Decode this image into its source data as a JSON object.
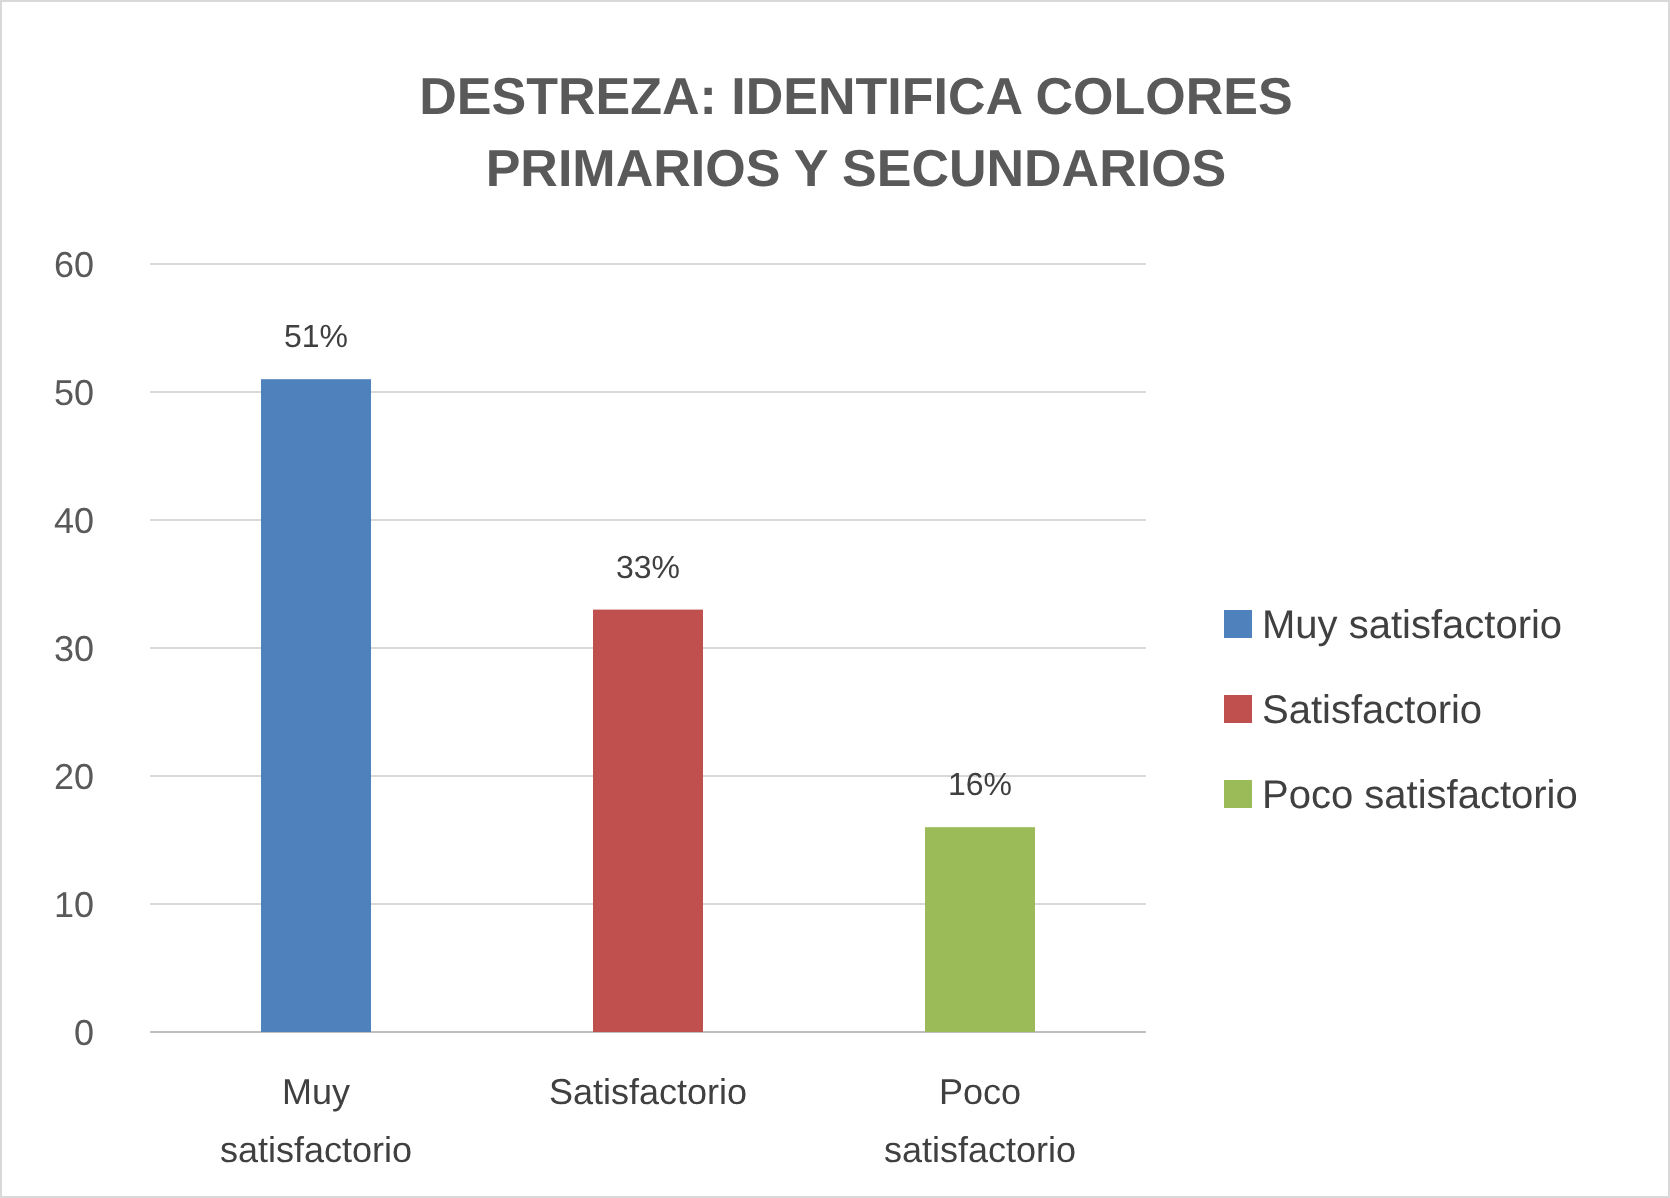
{
  "chart_data": {
    "type": "bar",
    "title": "DESTREZA: IDENTIFICA COLORES\nPRIMARIOS Y SECUNDARIOS",
    "categories": [
      "Muy satisfactorio",
      "Satisfactorio",
      "Poco satisfactorio"
    ],
    "series": [
      {
        "name": "Muy satisfactorio",
        "color": "#4f81bd",
        "values": [
          51,
          null,
          null
        ],
        "value_labels": [
          "51%",
          null,
          null
        ]
      },
      {
        "name": "Satisfactorio",
        "color": "#c0504d",
        "values": [
          null,
          33,
          null
        ],
        "value_labels": [
          null,
          "33%",
          null
        ]
      },
      {
        "name": "Poco satisfactorio",
        "color": "#9bbb59",
        "values": [
          null,
          null,
          16
        ],
        "value_labels": [
          null,
          null,
          "16%"
        ]
      }
    ],
    "stacked": true,
    "ylim": [
      0,
      60
    ],
    "yticks": [
      0,
      10,
      20,
      30,
      40,
      50,
      60
    ],
    "grid": "y",
    "legend": "right"
  }
}
